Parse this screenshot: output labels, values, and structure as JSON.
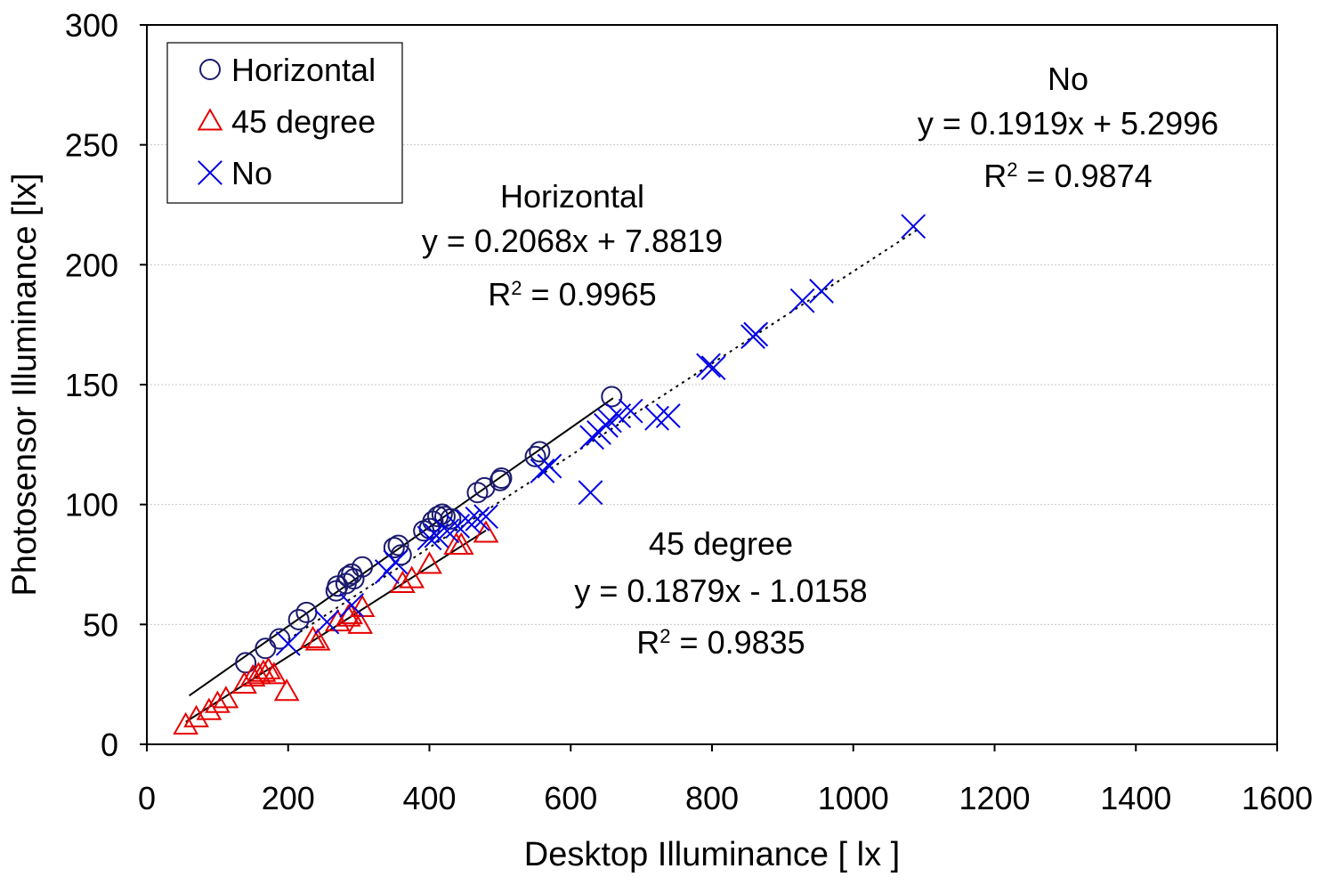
{
  "chart_data": {
    "type": "scatter",
    "xlabel": "Desktop Illuminance [ lx ]",
    "ylabel": "Photosensor Illuminance [lx]",
    "xlim": [
      0,
      1600
    ],
    "ylim": [
      0,
      300
    ],
    "xticks": [
      0,
      200,
      400,
      600,
      800,
      1000,
      1200,
      1400,
      1600
    ],
    "yticks": [
      0,
      50,
      100,
      150,
      200,
      250,
      300
    ],
    "grid": "horizontal",
    "legend_position": "top-left",
    "series": [
      {
        "name": "Horizontal",
        "marker": "circle",
        "color": "#1a1a6e",
        "points": [
          [
            140,
            34
          ],
          [
            168,
            40
          ],
          [
            188,
            44
          ],
          [
            215,
            52
          ],
          [
            226,
            55
          ],
          [
            268,
            64
          ],
          [
            270,
            66
          ],
          [
            282,
            67
          ],
          [
            285,
            70
          ],
          [
            290,
            71
          ],
          [
            293,
            69
          ],
          [
            305,
            74
          ],
          [
            350,
            82
          ],
          [
            356,
            83
          ],
          [
            360,
            79
          ],
          [
            392,
            89
          ],
          [
            400,
            90
          ],
          [
            405,
            93
          ],
          [
            412,
            95
          ],
          [
            418,
            96
          ],
          [
            422,
            95
          ],
          [
            430,
            94
          ],
          [
            468,
            105
          ],
          [
            478,
            107
          ],
          [
            500,
            110
          ],
          [
            502,
            111
          ],
          [
            550,
            120
          ],
          [
            556,
            122
          ],
          [
            658,
            145
          ]
        ],
        "trendline": {
          "x_range": [
            60,
            660
          ],
          "style": "solid",
          "equation": "y = 0.2068x + 7.8819",
          "r2_label": "R",
          "r2_value": " = 0.9965"
        }
      },
      {
        "name": "45 degree",
        "marker": "triangle",
        "color": "#e60000",
        "points": [
          [
            55,
            8
          ],
          [
            70,
            11
          ],
          [
            88,
            14
          ],
          [
            100,
            17
          ],
          [
            112,
            19
          ],
          [
            138,
            25
          ],
          [
            150,
            28
          ],
          [
            158,
            29
          ],
          [
            165,
            30
          ],
          [
            172,
            31
          ],
          [
            180,
            29
          ],
          [
            198,
            22
          ],
          [
            235,
            44
          ],
          [
            242,
            43
          ],
          [
            270,
            51
          ],
          [
            285,
            53
          ],
          [
            288,
            54
          ],
          [
            302,
            50
          ],
          [
            305,
            57
          ],
          [
            362,
            67
          ],
          [
            375,
            69
          ],
          [
            400,
            75
          ],
          [
            438,
            83
          ],
          [
            445,
            83
          ],
          [
            480,
            88
          ]
        ],
        "trendline": {
          "x_range": [
            55,
            480
          ],
          "style": "solid",
          "equation": "y = 0.1879x - 1.0158",
          "r2_label": "R",
          "r2_value": " = 0.9835"
        }
      },
      {
        "name": "No",
        "marker": "x",
        "color": "#0000e6",
        "points": [
          [
            200,
            42
          ],
          [
            255,
            51
          ],
          [
            290,
            58
          ],
          [
            340,
            72
          ],
          [
            352,
            76
          ],
          [
            400,
            86
          ],
          [
            410,
            87
          ],
          [
            425,
            89
          ],
          [
            440,
            91
          ],
          [
            455,
            93
          ],
          [
            468,
            94
          ],
          [
            480,
            95
          ],
          [
            560,
            114
          ],
          [
            570,
            116
          ],
          [
            628,
            105
          ],
          [
            630,
            128
          ],
          [
            640,
            130
          ],
          [
            650,
            133
          ],
          [
            655,
            135
          ],
          [
            668,
            137
          ],
          [
            685,
            139
          ],
          [
            722,
            136
          ],
          [
            738,
            137
          ],
          [
            795,
            158
          ],
          [
            802,
            157
          ],
          [
            858,
            170
          ],
          [
            862,
            171
          ],
          [
            928,
            185
          ],
          [
            955,
            189
          ],
          [
            1085,
            216
          ]
        ],
        "trendline": {
          "x_range": [
            200,
            1090
          ],
          "style": "dotted",
          "equation": "y = 0.1919x + 5.2996",
          "r2_label": "R",
          "r2_value": " = 0.9874"
        }
      }
    ],
    "annotations": [
      {
        "series": "Horizontal",
        "title": "Horizontal"
      },
      {
        "series": "45 degree",
        "title": "45 degree"
      },
      {
        "series": "No",
        "title": "No"
      }
    ]
  }
}
